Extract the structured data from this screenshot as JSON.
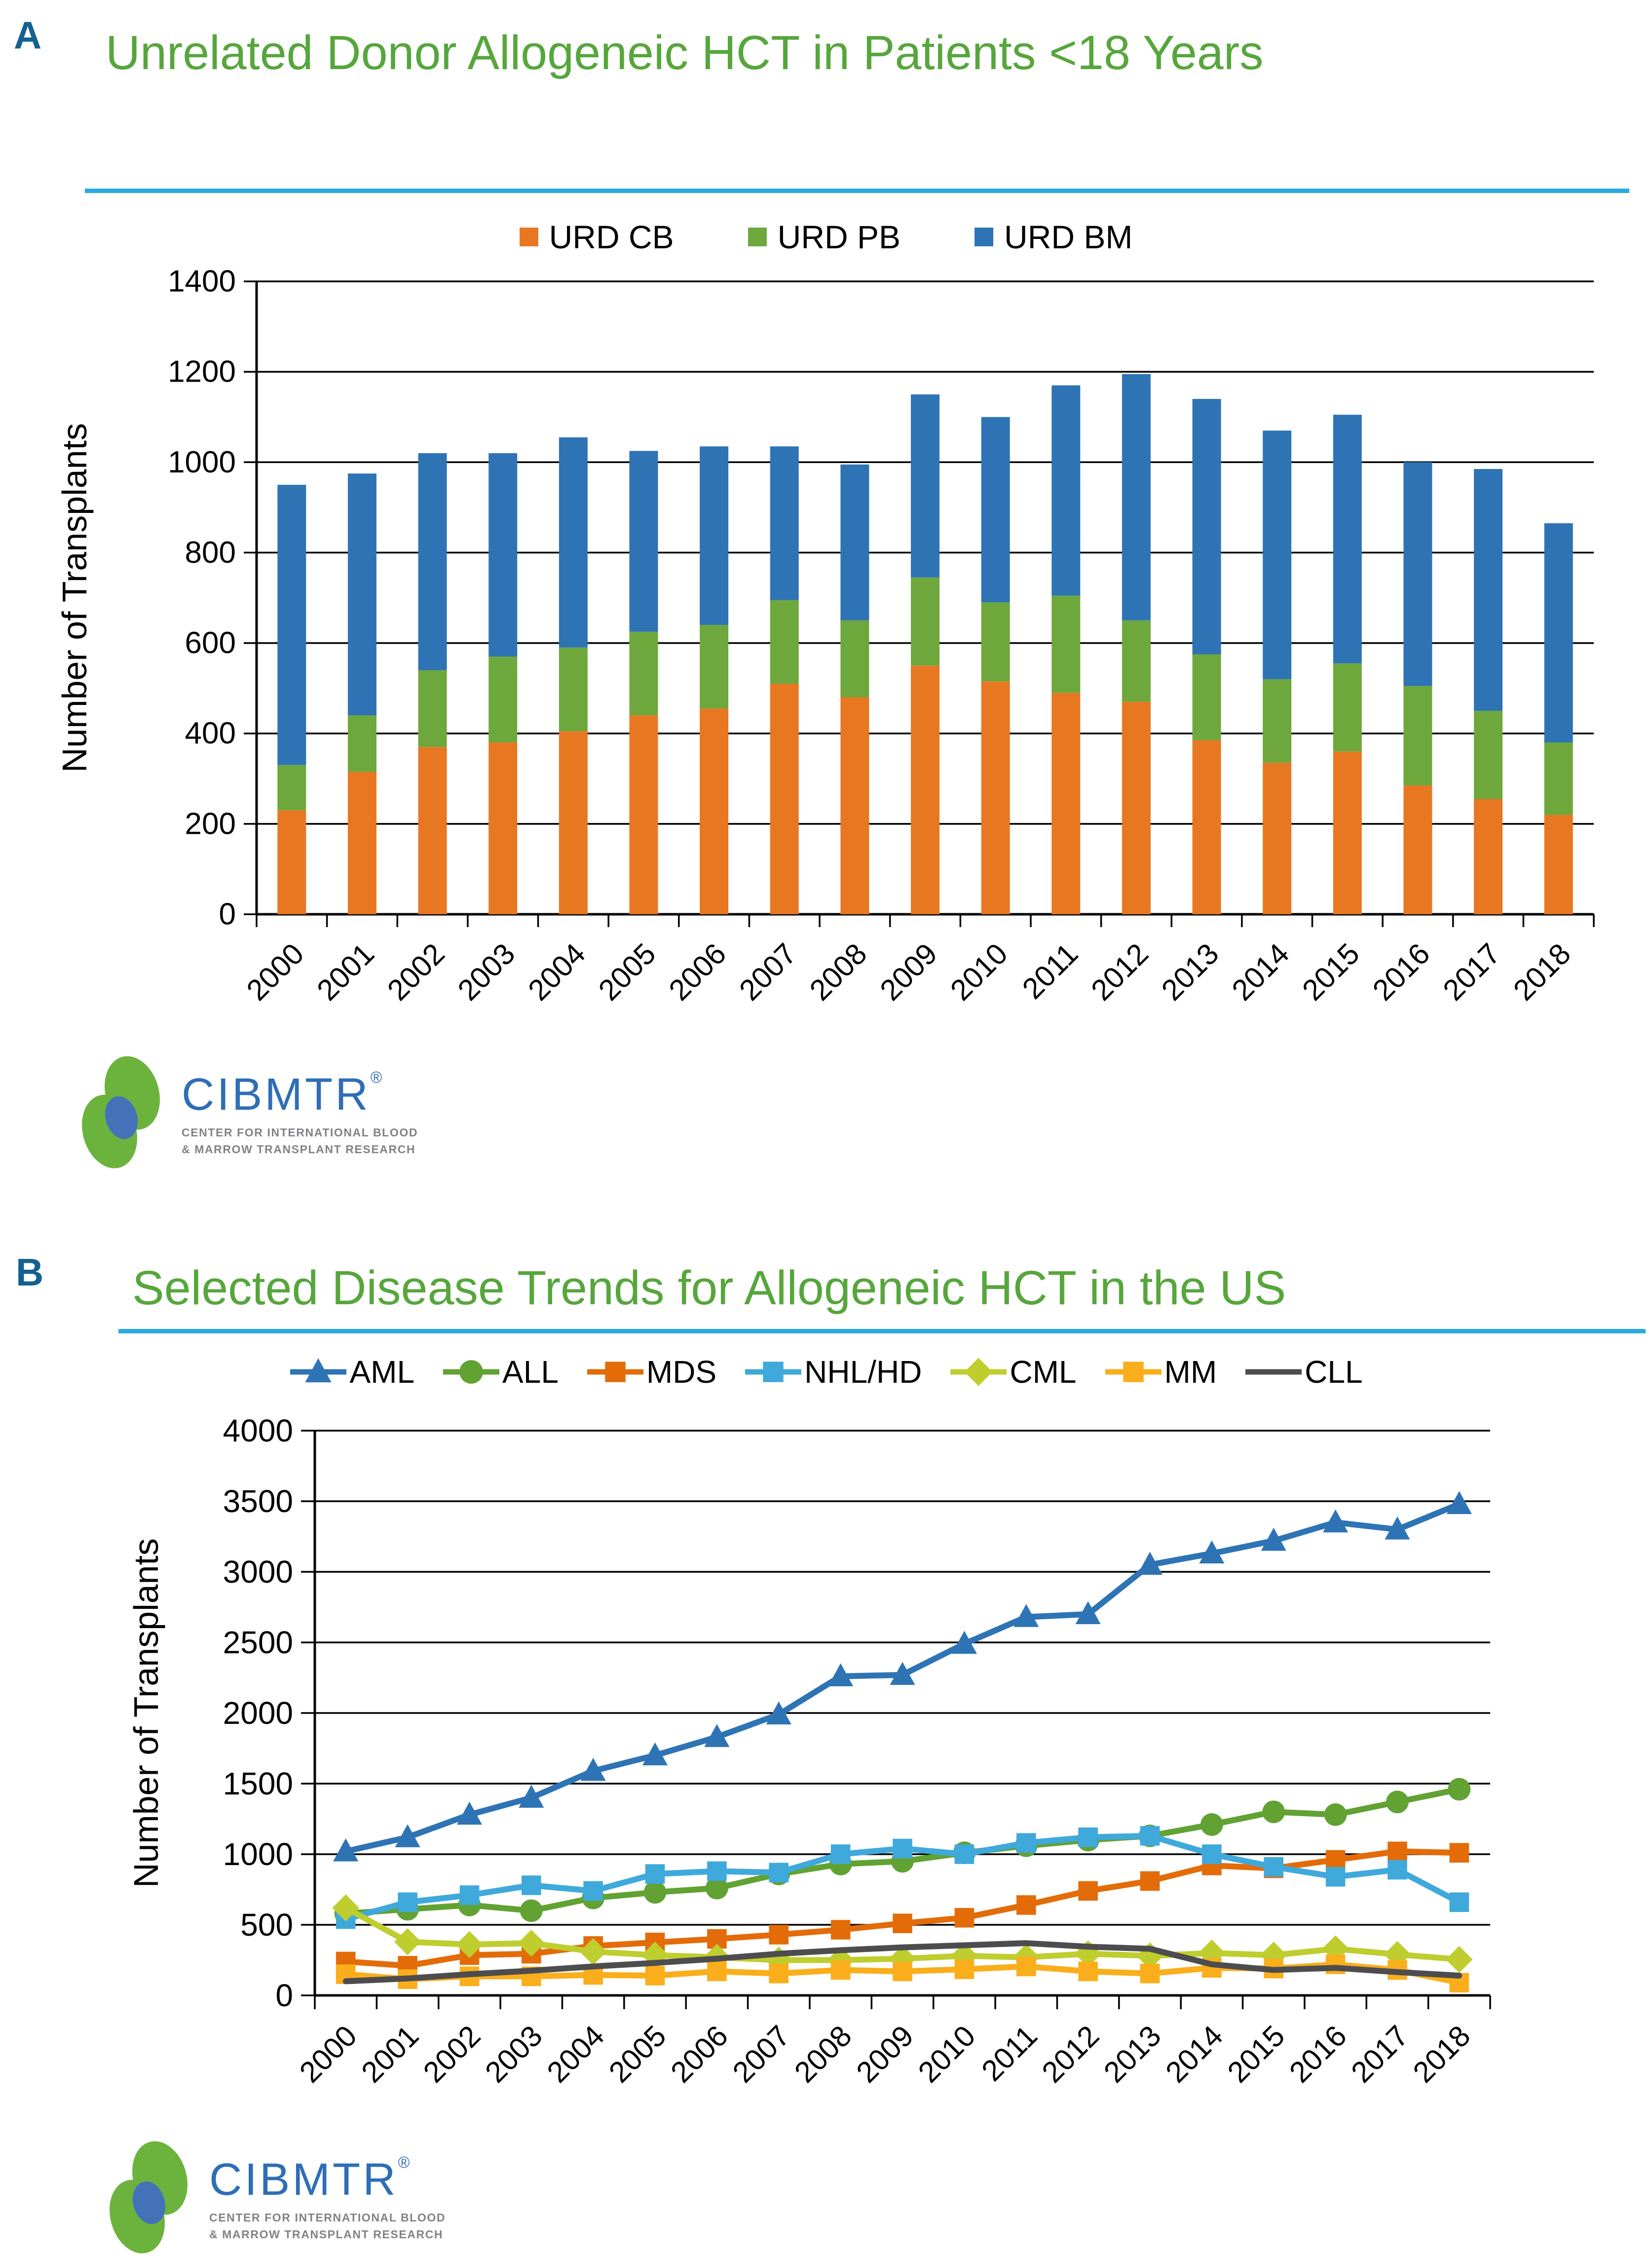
{
  "panelA": {
    "label": "A",
    "title": "Unrelated Donor Allogeneic HCT in Patients <18 Years"
  },
  "panelB": {
    "label": "B",
    "title": "Selected Disease Trends for Allogeneic HCT in the US"
  },
  "logo": {
    "name": "CIBMTR",
    "reg": "®",
    "line1": "CENTER FOR INTERNATIONAL BLOOD",
    "line2": "& MARROW TRANSPLANT RESEARCH"
  },
  "colors": {
    "title_green": "#56A63C",
    "underline_blue": "#29A9E0",
    "panel_label_blue": "#14618F",
    "axis_black": "#000000"
  },
  "chart_data": [
    {
      "type": "bar",
      "stacked": true,
      "title": "Unrelated Donor Allogeneic HCT in Patients <18 Years",
      "xlabel": "",
      "ylabel": "Number of Transplants",
      "ylim": [
        0,
        1400
      ],
      "ytick_step": 200,
      "grid": true,
      "legend_position": "top",
      "categories": [
        "2000",
        "2001",
        "2002",
        "2003",
        "2004",
        "2005",
        "2006",
        "2007",
        "2008",
        "2009",
        "2010",
        "2011",
        "2012",
        "2013",
        "2014",
        "2015",
        "2016",
        "2017",
        "2018"
      ],
      "series": [
        {
          "name": "URD CB",
          "color": "#E87722",
          "values": [
            230,
            315,
            370,
            380,
            405,
            440,
            455,
            510,
            480,
            550,
            515,
            490,
            470,
            385,
            335,
            360,
            285,
            255,
            220
          ]
        },
        {
          "name": "URD PB",
          "color": "#6EA83C",
          "values": [
            100,
            125,
            170,
            190,
            185,
            185,
            185,
            185,
            170,
            195,
            175,
            215,
            180,
            190,
            185,
            195,
            220,
            195,
            160
          ]
        },
        {
          "name": "URD BM",
          "color": "#2E74B5",
          "values": [
            620,
            535,
            480,
            450,
            465,
            400,
            395,
            340,
            345,
            405,
            410,
            465,
            545,
            565,
            550,
            550,
            495,
            535,
            485
          ]
        }
      ]
    },
    {
      "type": "line",
      "title": "Selected Disease Trends for Allogeneic HCT in the US",
      "xlabel": "",
      "ylabel": "Number of Transplants",
      "ylim": [
        0,
        4000
      ],
      "ytick_step": 500,
      "grid": true,
      "legend_position": "top",
      "categories": [
        "2000",
        "2001",
        "2002",
        "2003",
        "2004",
        "2005",
        "2006",
        "2007",
        "2008",
        "2009",
        "2010",
        "2011",
        "2012",
        "2013",
        "2014",
        "2015",
        "2016",
        "2017",
        "2018"
      ],
      "series": [
        {
          "name": "AML",
          "color": "#2E74B5",
          "marker": "triangle",
          "values": [
            1020,
            1120,
            1280,
            1400,
            1590,
            1700,
            1830,
            1990,
            2260,
            2270,
            2490,
            2680,
            2700,
            3050,
            3130,
            3220,
            3350,
            3300,
            3480
          ]
        },
        {
          "name": "ALL",
          "color": "#61A233",
          "marker": "circle",
          "values": [
            580,
            610,
            640,
            600,
            690,
            730,
            760,
            860,
            930,
            950,
            1010,
            1060,
            1100,
            1130,
            1210,
            1300,
            1280,
            1370,
            1460
          ]
        },
        {
          "name": "MDS",
          "color": "#E36C09",
          "marker": "square",
          "values": [
            240,
            210,
            285,
            295,
            350,
            375,
            400,
            430,
            465,
            510,
            550,
            640,
            740,
            810,
            920,
            900,
            960,
            1020,
            1010
          ]
        },
        {
          "name": "NHL/HD",
          "color": "#3FA9DC",
          "marker": "square",
          "values": [
            540,
            660,
            710,
            780,
            740,
            860,
            880,
            870,
            1000,
            1040,
            1000,
            1080,
            1120,
            1130,
            1000,
            910,
            840,
            890,
            660
          ]
        },
        {
          "name": "CML",
          "color": "#BFCE2E",
          "marker": "diamond",
          "values": [
            620,
            380,
            360,
            370,
            310,
            285,
            270,
            250,
            250,
            260,
            280,
            270,
            295,
            280,
            300,
            285,
            330,
            290,
            255
          ]
        },
        {
          "name": "MM",
          "color": "#FAAE1B",
          "marker": "square",
          "values": [
            150,
            115,
            135,
            135,
            145,
            140,
            170,
            155,
            180,
            170,
            185,
            205,
            170,
            155,
            195,
            190,
            220,
            180,
            90
          ]
        },
        {
          "name": "CLL",
          "color": "#4D4D4F",
          "marker": "none",
          "values": [
            100,
            120,
            150,
            175,
            205,
            230,
            260,
            295,
            320,
            340,
            355,
            370,
            345,
            330,
            220,
            180,
            195,
            165,
            140
          ]
        }
      ]
    }
  ]
}
